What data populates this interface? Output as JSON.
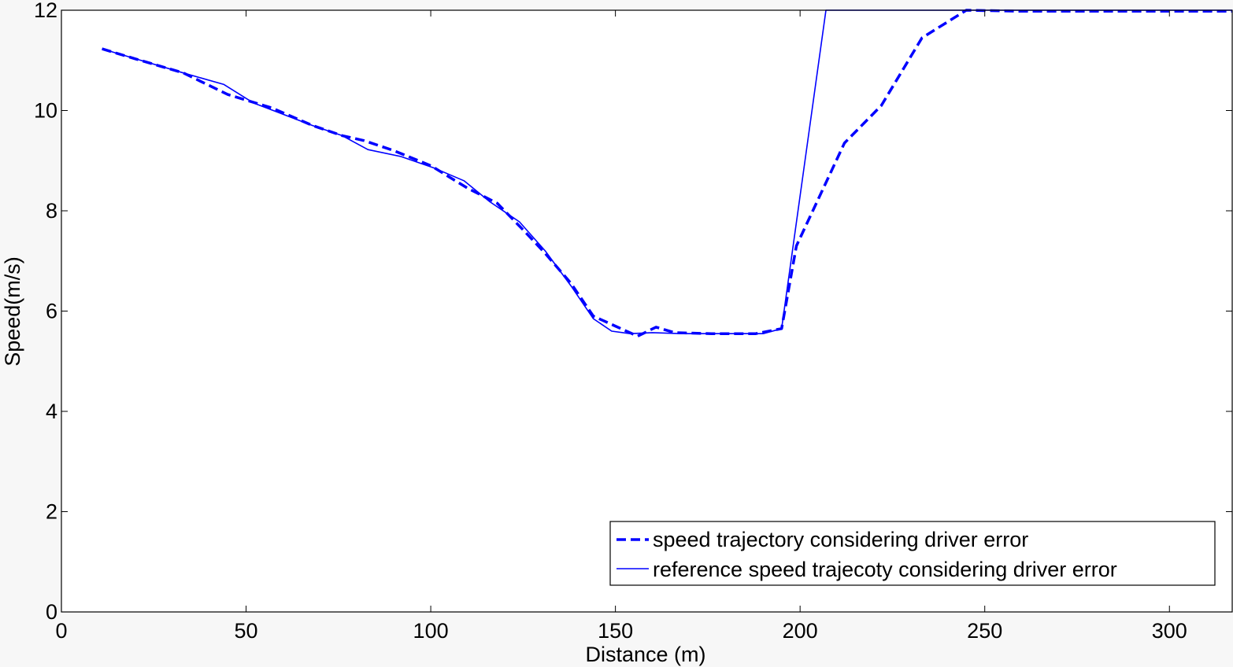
{
  "chart_data": {
    "type": "line",
    "title": "",
    "xlabel": "Distance (m)",
    "ylabel": "Speed(m/s)",
    "xlim": [
      0,
      317
    ],
    "ylim": [
      0,
      12
    ],
    "xticks": [
      0,
      50,
      100,
      150,
      200,
      250,
      300
    ],
    "yticks": [
      0,
      2,
      4,
      6,
      8,
      10,
      12
    ],
    "legend_position": "bottom-right",
    "colors": {
      "series": "#0000ff",
      "axes": "#000000",
      "plot_bg": "#ffffff",
      "figure_bg": "#f7f7f7"
    },
    "series": [
      {
        "name": "speed trajectory considering driver error",
        "style": "dashed",
        "x": [
          11,
          20,
          33,
          45,
          57,
          68,
          76,
          82,
          90,
          100,
          110,
          118,
          125,
          131,
          138,
          144,
          150,
          156,
          161,
          166,
          176,
          188,
          195,
          199,
          212,
          222,
          233,
          245,
          260,
          317
        ],
        "y": [
          11.23,
          11.03,
          10.75,
          10.32,
          10.05,
          9.7,
          9.5,
          9.4,
          9.2,
          8.9,
          8.45,
          8.15,
          7.62,
          7.15,
          6.55,
          5.9,
          5.7,
          5.5,
          5.68,
          5.57,
          5.55,
          5.55,
          5.65,
          7.3,
          9.35,
          10.1,
          11.45,
          12.0,
          11.98,
          11.98
        ]
      },
      {
        "name": "reference speed trajecoty considering driver error",
        "style": "solid",
        "x": [
          11,
          33,
          44,
          52,
          68,
          76,
          83,
          92,
          101,
          109,
          116,
          124,
          131,
          138,
          144,
          149,
          154,
          160,
          168,
          180,
          190,
          195,
          207,
          317
        ],
        "y": [
          11.23,
          10.75,
          10.52,
          10.15,
          9.7,
          9.5,
          9.22,
          9.08,
          8.85,
          8.6,
          8.18,
          7.78,
          7.2,
          6.5,
          5.85,
          5.6,
          5.55,
          5.57,
          5.55,
          5.55,
          5.55,
          5.65,
          12.0,
          12.0
        ]
      }
    ]
  }
}
